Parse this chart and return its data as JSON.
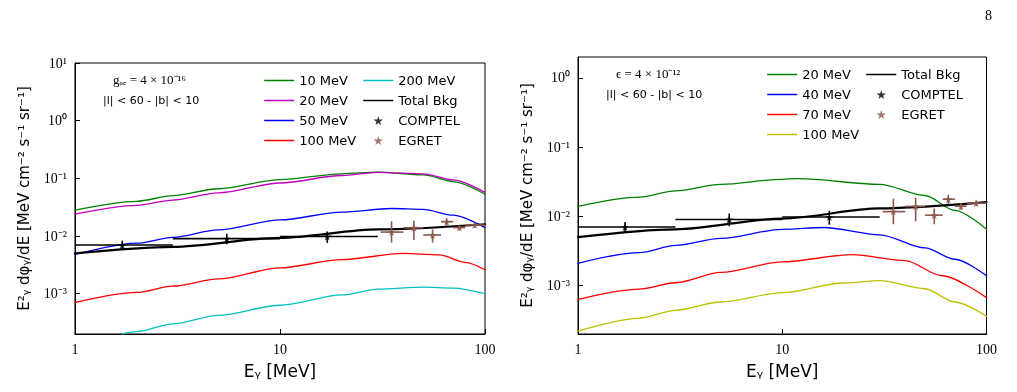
{
  "chart_data": [
    {
      "type": "line",
      "xlabel": "Eᵧ [MeV]",
      "ylabel": "E²ᵧ dφᵧ/dE [MeV cm⁻² s⁻¹ sr⁻¹]",
      "log": "xy",
      "xlim": [
        1,
        100
      ],
      "xticks": [
        1,
        10,
        100
      ],
      "ylim": [
        0.0002,
        10
      ],
      "yticks": [
        {
          "value": 0.001,
          "label": "10⁻³"
        },
        {
          "value": 0.01,
          "label": "10⁻²"
        },
        {
          "value": 0.1,
          "label": "10⁻¹"
        },
        {
          "value": 1,
          "label": "10⁰"
        },
        {
          "value": 10,
          "label": "10¹"
        }
      ],
      "grid": false,
      "legend": "top right",
      "marker": "none",
      "line_style": "solid",
      "annotations": [
        "gₐₑ = 4 × 10⁻¹⁶",
        "|l| < 60 - |b| < 10"
      ],
      "series": [
        {
          "name": "10 MeV",
          "color": "#008000",
          "x": [
            1,
            2,
            3,
            5,
            10,
            20,
            30,
            50,
            70,
            100
          ],
          "values": [
            0.028,
            0.04,
            0.05,
            0.066,
            0.095,
            0.12,
            0.128,
            0.115,
            0.088,
            0.053
          ]
        },
        {
          "name": "20 MeV",
          "color": "#bf00bf",
          "x": [
            1,
            2,
            3,
            5,
            10,
            20,
            30,
            50,
            70,
            100
          ],
          "values": [
            0.024,
            0.034,
            0.042,
            0.056,
            0.083,
            0.112,
            0.127,
            0.12,
            0.094,
            0.057
          ]
        },
        {
          "name": "50 MeV",
          "color": "#0000ff",
          "x": [
            1,
            2,
            3,
            5,
            10,
            20,
            35,
            50,
            70,
            100
          ],
          "values": [
            0.0048,
            0.0075,
            0.0095,
            0.0128,
            0.019,
            0.026,
            0.03,
            0.029,
            0.023,
            0.014
          ]
        },
        {
          "name": "100 MeV",
          "color": "#ff0000",
          "x": [
            1,
            2,
            3,
            5,
            10,
            20,
            40,
            60,
            80,
            100
          ],
          "values": [
            0.0007,
            0.00105,
            0.00135,
            0.0018,
            0.0028,
            0.0039,
            0.005,
            0.0047,
            0.0035,
            0.0026
          ]
        },
        {
          "name": "200 MeV",
          "color": "#00bfbf",
          "x": [
            1.7,
            2,
            3,
            5,
            10,
            20,
            30,
            50,
            70,
            100
          ],
          "values": [
            0.0002,
            0.00022,
            0.0003,
            0.00042,
            0.00063,
            0.00095,
            0.0012,
            0.0013,
            0.00125,
            0.001
          ]
        },
        {
          "name": "Total Bkg",
          "color": "#000000",
          "x": [
            1,
            3,
            10,
            30,
            100
          ],
          "values": [
            0.005,
            0.0065,
            0.0093,
            0.013,
            0.016
          ]
        },
        {
          "name": "COMPTEL",
          "type": "scatter",
          "marker": "star",
          "color": "#000000",
          "x": [
            1.7,
            5.5,
            17
          ],
          "values": [
            0.007,
            0.009,
            0.0098
          ],
          "errors": [
            [
              0.0058,
              0.0083
            ],
            [
              0.0072,
              0.011
            ],
            [
              0.0076,
              0.012
            ]
          ],
          "xerrors": [
            [
              1,
              3
            ],
            [
              3,
              10
            ],
            [
              10,
              30
            ]
          ]
        },
        {
          "name": "EGRET",
          "type": "scatter",
          "marker": "star",
          "color": "#8c564b",
          "x": [
            35,
            45,
            55.5,
            65,
            75,
            89
          ],
          "values": [
            0.0117,
            0.0139,
            0.0104,
            0.0177,
            0.014,
            0.0155
          ],
          "errors": [
            [
              0.0077,
              0.018
            ],
            [
              0.0085,
              0.0185
            ],
            [
              0.0077,
              0.013
            ],
            [
              0.015,
              0.0205
            ],
            [
              0.0125,
              0.0155
            ],
            [
              0.014,
              0.017
            ]
          ],
          "xerrors": [
            [
              31,
              40
            ],
            [
              40,
              50
            ],
            [
              50,
              61
            ],
            [
              61,
              70
            ],
            [
              70,
              80
            ],
            [
              80,
              100
            ]
          ]
        }
      ]
    },
    {
      "type": "line",
      "xlabel": "Eᵧ [MeV]",
      "ylabel": "E²ᵧ dφᵧ/dE [MeV cm⁻² s⁻¹ sr⁻¹]",
      "log": "xy",
      "xlim": [
        1,
        100
      ],
      "xticks": [
        1,
        10,
        100
      ],
      "ylim": [
        0.0002,
        2
      ],
      "yticks": [
        {
          "value": 0.001,
          "label": "10⁻³"
        },
        {
          "value": 0.01,
          "label": "10⁻²"
        },
        {
          "value": 0.1,
          "label": "10⁻¹"
        },
        {
          "value": 1,
          "label": "10⁰"
        }
      ],
      "grid": false,
      "legend": "top right",
      "marker": "none",
      "line_style": "solid",
      "annotations": [
        "ϵ = 4 × 10⁻¹²",
        "|l| < 60 - |b| < 10",
        "8"
      ],
      "series": [
        {
          "name": "20 MeV",
          "color": "#008000",
          "x": [
            1,
            2,
            3,
            5,
            10,
            12,
            30,
            50,
            70,
            100
          ],
          "values": [
            0.0139,
            0.0189,
            0.0234,
            0.029,
            0.0343,
            0.035,
            0.029,
            0.02,
            0.0122,
            0.0065
          ]
        },
        {
          "name": "40 MeV",
          "color": "#0000ff",
          "x": [
            1,
            2,
            3,
            5,
            10,
            16,
            30,
            50,
            70,
            100
          ],
          "values": [
            0.0021,
            0.003,
            0.0038,
            0.0048,
            0.0065,
            0.0069,
            0.0054,
            0.0035,
            0.0024,
            0.00139
          ]
        },
        {
          "name": "70 MeV",
          "color": "#ff0000",
          "x": [
            1,
            2,
            3,
            5,
            10,
            22,
            40,
            60,
            100
          ],
          "values": [
            0.00063,
            0.00089,
            0.0011,
            0.00155,
            0.0022,
            0.0028,
            0.0023,
            0.0014,
            0.00067
          ]
        },
        {
          "name": "100 MeV",
          "color": "#bfbf00",
          "x": [
            1,
            2,
            3,
            5,
            10,
            20,
            30,
            50,
            70,
            100
          ],
          "values": [
            0.00022,
            0.00034,
            0.00044,
            0.00058,
            0.00079,
            0.00109,
            0.00118,
            0.0009,
            0.00058,
            0.00036
          ]
        },
        {
          "name": "Total Bkg",
          "color": "#000000",
          "x": [
            1,
            3,
            10,
            30,
            100
          ],
          "values": [
            0.005,
            0.0065,
            0.0093,
            0.013,
            0.016
          ]
        },
        {
          "name": "COMPTEL",
          "type": "scatter",
          "marker": "star",
          "color": "#000000",
          "x": [
            1.7,
            5.5,
            17
          ],
          "values": [
            0.007,
            0.009,
            0.0098
          ],
          "errors": [
            [
              0.0058,
              0.0083
            ],
            [
              0.0072,
              0.011
            ],
            [
              0.0076,
              0.012
            ]
          ],
          "xerrors": [
            [
              1,
              3
            ],
            [
              3,
              10
            ],
            [
              10,
              30
            ]
          ]
        },
        {
          "name": "EGRET",
          "type": "scatter",
          "marker": "star",
          "color": "#8c564b",
          "x": [
            35,
            45,
            55.5,
            65,
            75,
            89
          ],
          "values": [
            0.0117,
            0.0139,
            0.0104,
            0.0177,
            0.014,
            0.0155
          ],
          "errors": [
            [
              0.0077,
              0.018
            ],
            [
              0.0085,
              0.0185
            ],
            [
              0.0077,
              0.013
            ],
            [
              0.015,
              0.0205
            ],
            [
              0.0125,
              0.0155
            ],
            [
              0.014,
              0.017
            ]
          ],
          "xerrors": [
            [
              31,
              40
            ],
            [
              40,
              50
            ],
            [
              50,
              61
            ],
            [
              61,
              70
            ],
            [
              70,
              80
            ],
            [
              80,
              100
            ]
          ]
        }
      ]
    }
  ]
}
